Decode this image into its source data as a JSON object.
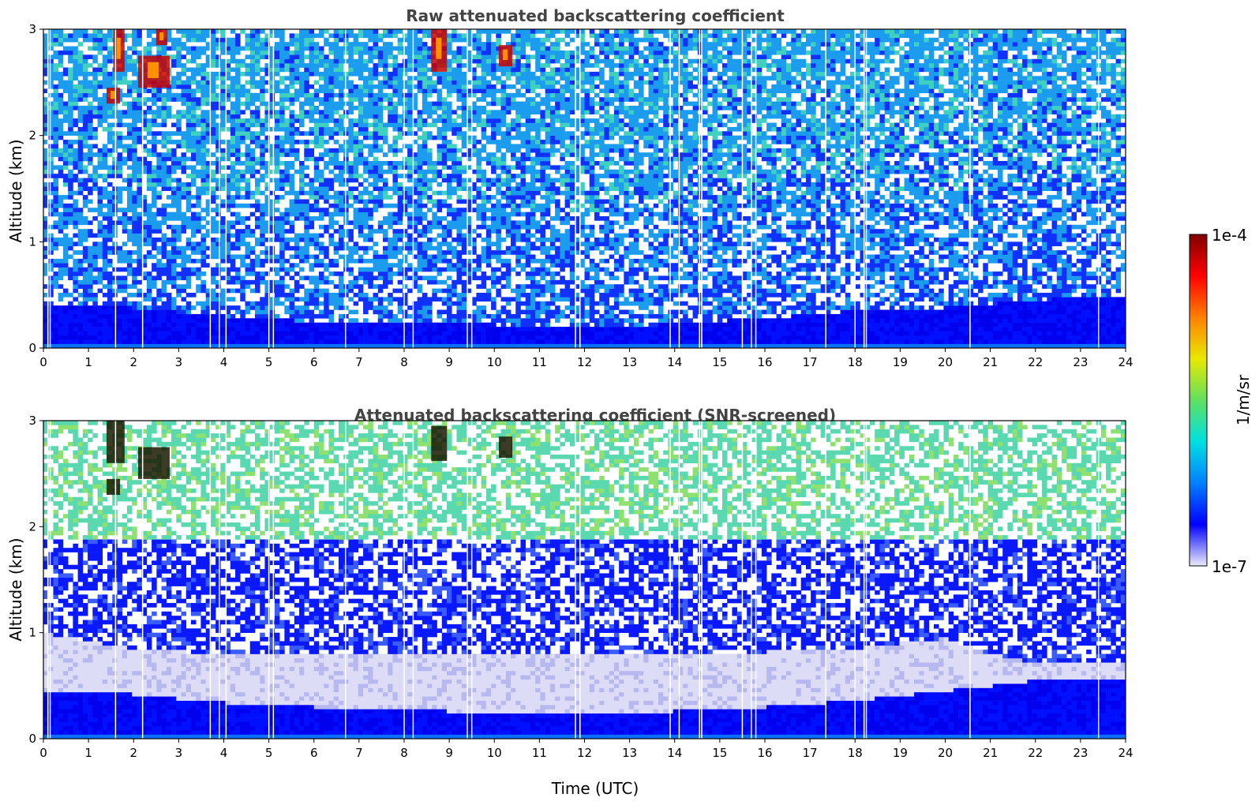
{
  "chart_data": [
    {
      "type": "heatmap",
      "title": "Raw attenuated backscattering coefficient",
      "xlabel": "",
      "ylabel": "Altitude (km)",
      "xlim": [
        0,
        24
      ],
      "ylim": [
        0,
        3
      ],
      "xticks": [
        "0",
        "1",
        "2",
        "3",
        "4",
        "5",
        "6",
        "7",
        "8",
        "9",
        "10",
        "11",
        "12",
        "13",
        "14",
        "15",
        "16",
        "17",
        "18",
        "19",
        "20",
        "21",
        "22",
        "23",
        "24"
      ],
      "yticks": [
        "0",
        "1",
        "2",
        "3"
      ],
      "boundary_layer_top_km": [
        {
          "time": 0,
          "alt": 0.42
        },
        {
          "time": 2,
          "alt": 0.38
        },
        {
          "time": 4,
          "alt": 0.3
        },
        {
          "time": 6,
          "alt": 0.25
        },
        {
          "time": 8,
          "alt": 0.26
        },
        {
          "time": 10,
          "alt": 0.22
        },
        {
          "time": 12,
          "alt": 0.18
        },
        {
          "time": 14,
          "alt": 0.23
        },
        {
          "time": 16,
          "alt": 0.28
        },
        {
          "time": 18,
          "alt": 0.35
        },
        {
          "time": 20,
          "alt": 0.38
        },
        {
          "time": 22,
          "alt": 0.45
        },
        {
          "time": 24,
          "alt": 0.5
        }
      ],
      "cloud_features": [
        {
          "time_start": 1.4,
          "time_end": 1.7,
          "alt_low": 2.3,
          "alt_high": 2.45
        },
        {
          "time_start": 1.55,
          "time_end": 1.8,
          "alt_low": 2.6,
          "alt_high": 3.0
        },
        {
          "time_start": 2.1,
          "time_end": 2.8,
          "alt_low": 2.45,
          "alt_high": 2.75
        },
        {
          "time_start": 2.5,
          "time_end": 2.75,
          "alt_low": 2.85,
          "alt_high": 3.0
        },
        {
          "time_start": 8.6,
          "time_end": 8.95,
          "alt_low": 2.6,
          "alt_high": 3.0
        },
        {
          "time_start": 10.1,
          "time_end": 10.4,
          "alt_low": 2.65,
          "alt_high": 2.85
        }
      ],
      "data_gaps_utc": [
        0.1,
        0.15,
        1.6,
        2.2,
        3.7,
        3.9,
        4.05,
        5.0,
        5.1,
        6.7,
        8.0,
        8.2,
        9.4,
        9.5,
        11.8,
        11.9,
        13.9,
        14.1,
        14.55,
        14.6,
        15.5,
        15.7,
        15.8,
        17.35,
        18.0,
        18.2,
        18.25,
        20.55,
        23.4
      ]
    },
    {
      "type": "heatmap",
      "title": "Attenuated backscattering coefficient (SNR-screened)",
      "xlabel": "Time (UTC)",
      "ylabel": "Altitude (km)",
      "xlim": [
        0,
        24
      ],
      "ylim": [
        0,
        3
      ],
      "xticks": [
        "0",
        "1",
        "2",
        "3",
        "4",
        "5",
        "6",
        "7",
        "8",
        "9",
        "10",
        "11",
        "12",
        "13",
        "14",
        "15",
        "16",
        "17",
        "18",
        "19",
        "20",
        "21",
        "22",
        "23",
        "24"
      ],
      "yticks": [
        "0",
        "1",
        "2",
        "3"
      ],
      "boundary_layer_top_km": [
        {
          "time": 0,
          "alt": 0.45
        },
        {
          "time": 2,
          "alt": 0.42
        },
        {
          "time": 4,
          "alt": 0.34
        },
        {
          "time": 6,
          "alt": 0.3
        },
        {
          "time": 8,
          "alt": 0.28
        },
        {
          "time": 10,
          "alt": 0.24
        },
        {
          "time": 12,
          "alt": 0.22
        },
        {
          "time": 14,
          "alt": 0.26
        },
        {
          "time": 16,
          "alt": 0.3
        },
        {
          "time": 18,
          "alt": 0.36
        },
        {
          "time": 20,
          "alt": 0.45
        },
        {
          "time": 22,
          "alt": 0.55
        },
        {
          "time": 24,
          "alt": 0.58
        }
      ],
      "residual_layer_top_km": [
        {
          "time": 0,
          "alt": 1.0
        },
        {
          "time": 2,
          "alt": 0.85
        },
        {
          "time": 4,
          "alt": 0.8
        },
        {
          "time": 6,
          "alt": 0.8
        },
        {
          "time": 8,
          "alt": 0.78
        },
        {
          "time": 10,
          "alt": 0.8
        },
        {
          "time": 12,
          "alt": 0.8
        },
        {
          "time": 14,
          "alt": 0.8
        },
        {
          "time": 16,
          "alt": 0.82
        },
        {
          "time": 18,
          "alt": 0.85
        },
        {
          "time": 20,
          "alt": 0.95
        },
        {
          "time": 21,
          "alt": 0.8
        },
        {
          "time": 22,
          "alt": 0.72
        },
        {
          "time": 24,
          "alt": 0.7
        }
      ],
      "screened_cloud_features": [
        {
          "time_start": 1.4,
          "time_end": 1.7,
          "alt_low": 2.3,
          "alt_high": 2.45
        },
        {
          "time_start": 1.4,
          "time_end": 1.8,
          "alt_low": 2.6,
          "alt_high": 3.0
        },
        {
          "time_start": 2.1,
          "time_end": 2.8,
          "alt_low": 2.45,
          "alt_high": 2.75
        },
        {
          "time_start": 8.6,
          "time_end": 8.95,
          "alt_low": 2.62,
          "alt_high": 2.95
        },
        {
          "time_start": 10.1,
          "time_end": 10.4,
          "alt_low": 2.65,
          "alt_high": 2.85
        }
      ],
      "data_gaps_utc": [
        0.1,
        0.15,
        1.6,
        2.2,
        3.7,
        3.9,
        4.05,
        5.0,
        5.1,
        6.7,
        8.0,
        8.2,
        9.4,
        9.5,
        11.8,
        11.9,
        13.9,
        14.1,
        14.55,
        14.6,
        15.5,
        15.7,
        15.8,
        17.35,
        18.0,
        18.2,
        18.25,
        20.55,
        23.4
      ]
    }
  ],
  "colorbar": {
    "label": "1/m/sr",
    "min_label": "1e-7",
    "max_label": "1e-4",
    "scale": "log",
    "stops": [
      "#ebebfa",
      "#0000ff",
      "#0080ff",
      "#00e0e0",
      "#60e060",
      "#e8e800",
      "#ff8000",
      "#ff0000",
      "#800000"
    ]
  },
  "colors": {
    "axis": "#000000",
    "title": "#444444"
  }
}
